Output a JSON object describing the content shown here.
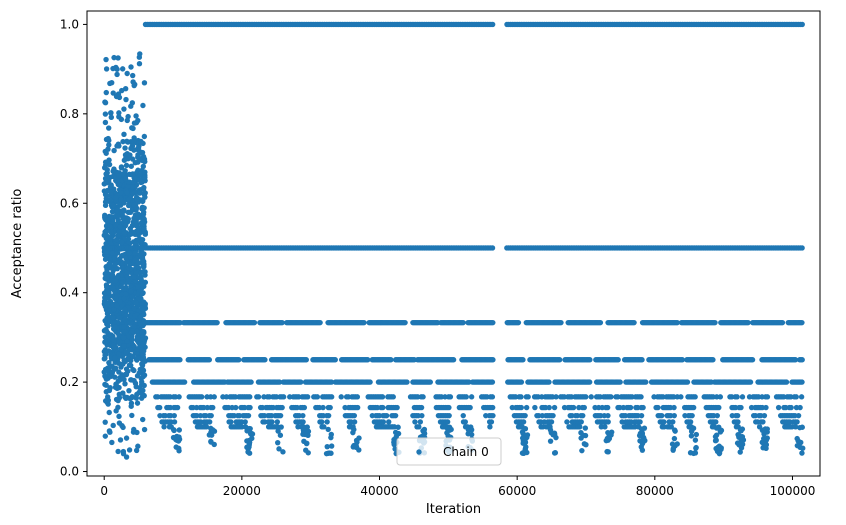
{
  "chart_data": {
    "type": "scatter",
    "title": "",
    "xlabel": "Iteration",
    "ylabel": "Acceptance ratio",
    "xlim": [
      -2500,
      104000
    ],
    "ylim": [
      -0.01,
      1.03
    ],
    "x_ticks": [
      0,
      20000,
      40000,
      60000,
      80000,
      100000
    ],
    "y_ticks": [
      0.0,
      0.2,
      0.4,
      0.6,
      0.8,
      1.0
    ],
    "x_tick_labels": [
      "0",
      "20000",
      "40000",
      "60000",
      "80000",
      "100000"
    ],
    "y_tick_labels": [
      "0.0",
      "0.2",
      "0.4",
      "0.6",
      "0.8",
      "1.0"
    ],
    "grid": false,
    "legend": {
      "position": "bottom-center",
      "entries": [
        "Chain 0"
      ]
    },
    "series": [
      {
        "name": "Chain 0",
        "color": "#1f77b4",
        "marker": "circle",
        "segments": [
          {
            "x_range": [
              0,
              6000
            ],
            "y_range": [
              0.03,
              0.94
            ],
            "description": "burn-in: dense, continuously varying acceptance ratios"
          },
          {
            "x_range": [
              6000,
              101500
            ],
            "y": 1.0
          },
          {
            "x_range": [
              0,
              56500
            ],
            "y": 0.5
          },
          {
            "x_range": [
              58500,
              101500
            ],
            "y": 0.5
          },
          {
            "x_range": [
              6000,
              101500
            ],
            "y": 0.333,
            "sparse": true
          },
          {
            "x_range": [
              6500,
              101500
            ],
            "y": 0.25,
            "sparse": true
          },
          {
            "x_range": [
              7000,
              101500
            ],
            "y": 0.2,
            "sparse": true
          },
          {
            "x_range": [
              7500,
              101500
            ],
            "y_range": [
              0.04,
              0.17
            ],
            "sparse": true,
            "clustered": true
          }
        ],
        "gaps": [
          [
            56500,
            58500
          ]
        ]
      }
    ]
  }
}
